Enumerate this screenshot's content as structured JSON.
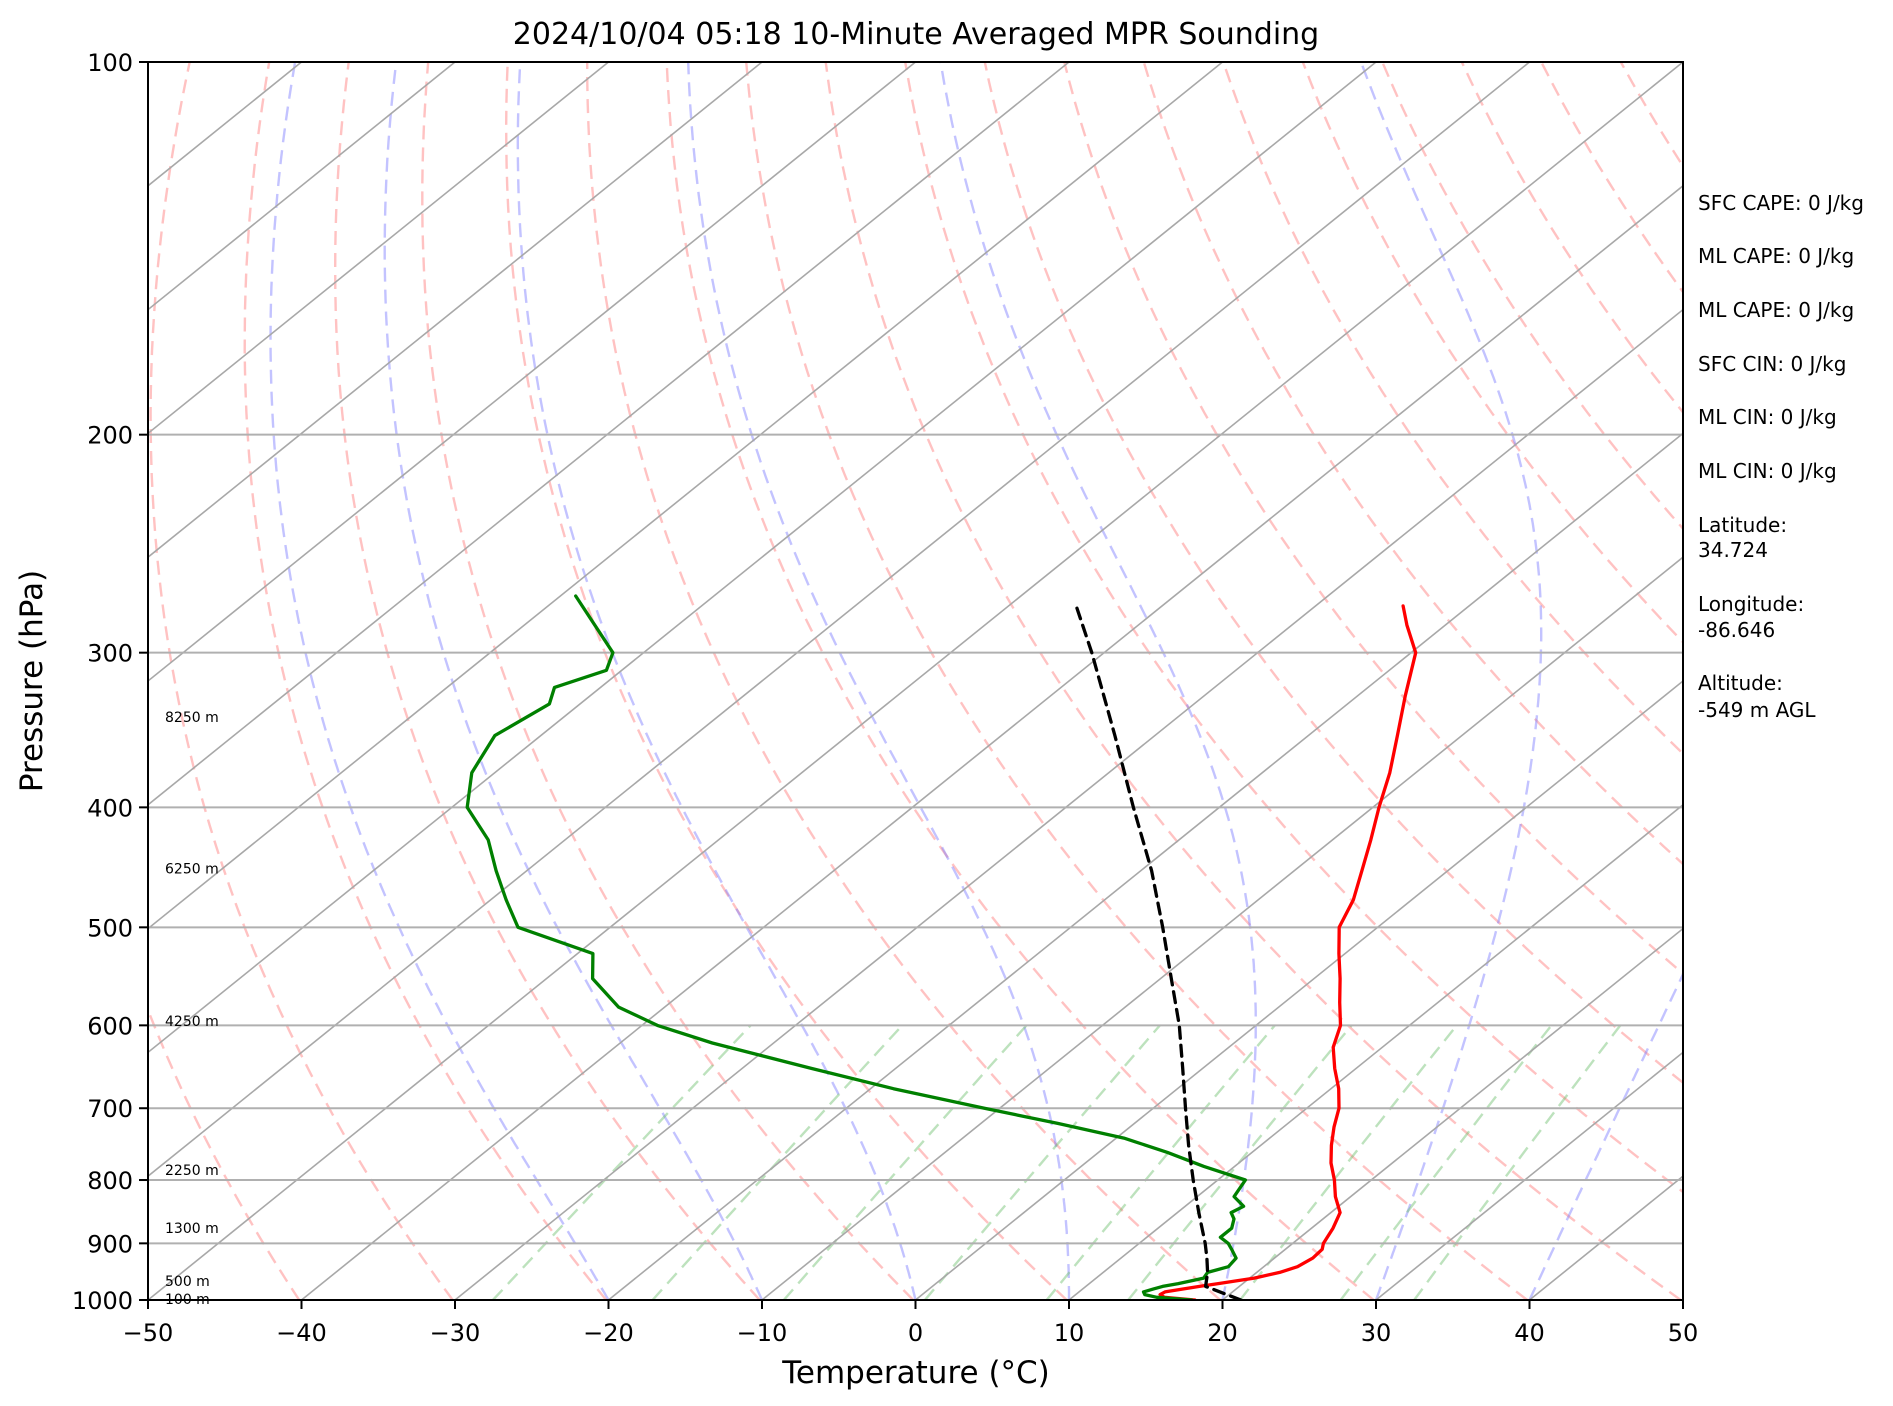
{
  "chart_data": {
    "type": "line",
    "title": "2024/10/04 05:18 10-Minute Averaged MPR Sounding",
    "xlabel": "Temperature (°C)",
    "ylabel": "Pressure (hPa)",
    "xlim": [
      -50,
      50
    ],
    "ylim": [
      1000,
      100
    ],
    "y_scale": "log",
    "skew": "skew-T log-p",
    "x_ticks": [
      "−50",
      "−40",
      "−30",
      "−20",
      "−10",
      "0",
      "10",
      "20",
      "30",
      "40",
      "50"
    ],
    "y_ticks": [
      "100",
      "200",
      "300",
      "400",
      "500",
      "600",
      "700",
      "800",
      "900",
      "1000"
    ],
    "grid": true,
    "series": [
      {
        "role": "temperature",
        "color": "#ff0000",
        "pressure": [
          1000,
          995,
          990,
          985,
          980,
          975,
          970,
          965,
          960,
          950,
          940,
          925,
          910,
          900,
          875,
          850,
          825,
          800,
          775,
          750,
          725,
          700,
          675,
          650,
          625,
          600,
          575,
          550,
          525,
          500,
          475,
          450,
          425,
          400,
          375,
          350,
          325,
          300,
          285,
          275
        ],
        "values": [
          18.2,
          16.0,
          15.5,
          15.6,
          16.5,
          17.4,
          18.4,
          19.4,
          20.3,
          21.5,
          22.2,
          22.5,
          22.4,
          22.0,
          21.4,
          20.6,
          19.0,
          17.6,
          16.0,
          14.6,
          13.3,
          12.1,
          10.5,
          8.6,
          6.8,
          5.5,
          3.6,
          1.7,
          -0.4,
          -2.5,
          -3.8,
          -5.6,
          -7.5,
          -9.6,
          -11.7,
          -14.2,
          -16.9,
          -19.7,
          -22.5,
          -24.3
        ]
      },
      {
        "role": "dewpoint",
        "color": "#008000",
        "pressure": [
          1000,
          995,
          990,
          985,
          980,
          975,
          970,
          960,
          950,
          940,
          925,
          910,
          900,
          890,
          875,
          860,
          850,
          840,
          825,
          800,
          780,
          760,
          740,
          720,
          700,
          675,
          650,
          620,
          600,
          580,
          550,
          525,
          500,
          475,
          450,
          425,
          400,
          375,
          350,
          330,
          320,
          310,
          300,
          270
        ],
        "values": [
          18.0,
          15.5,
          14.5,
          14.2,
          14.6,
          15.0,
          15.8,
          17.0,
          16.8,
          17.7,
          17.5,
          16.5,
          15.8,
          14.8,
          14.8,
          14.2,
          13.5,
          13.8,
          12.4,
          11.8,
          8.0,
          4.5,
          0.5,
          -5.0,
          -11.0,
          -18.5,
          -25.5,
          -34.0,
          -39.0,
          -43.0,
          -47.0,
          -49.0,
          -56.0,
          -59.0,
          -62.0,
          -65.0,
          -69.0,
          -71.5,
          -73.0,
          -72.0,
          -73.0,
          -71.0,
          -72.0,
          -79.0
        ]
      },
      {
        "role": "parcel",
        "color": "#000000",
        "style": "dashed",
        "pressure": [
          1000,
          975,
          950,
          925,
          900,
          850,
          800,
          750,
          700,
          650,
          600,
          550,
          500,
          450,
          400,
          350,
          300,
          275
        ],
        "values": [
          21.2,
          17.8,
          16.8,
          15.6,
          14.3,
          11.4,
          8.4,
          5.3,
          2.1,
          -1.3,
          -5.0,
          -9.3,
          -14.0,
          -19.3,
          -25.6,
          -32.6,
          -40.8,
          -45.6
        ]
      }
    ],
    "height_labels": [
      "100 m",
      "500 m",
      "1300 m",
      "2250 m",
      "4250 m",
      "6250 m",
      "8250 m"
    ],
    "height_label_pressures": [
      998,
      965,
      875,
      785,
      595,
      448,
      338
    ],
    "dry_adiabat_thetas_k": [
      233,
      243,
      253,
      263,
      273,
      283,
      293,
      303,
      313,
      323,
      333,
      343,
      353,
      363,
      373,
      383,
      393,
      403,
      413,
      423,
      433,
      443,
      453,
      473
    ],
    "moist_adiabat_start_temps_c": [
      -20,
      -10,
      0,
      10,
      20,
      30,
      40,
      50
    ],
    "mixing_ratio_lines_g_kg": [
      0.4,
      1,
      2,
      4,
      7,
      10,
      16,
      24,
      32
    ]
  },
  "stats": [
    "SFC CAPE: 0 J/kg",
    "ML CAPE: 0 J/kg",
    "ML CAPE: 0 J/kg",
    "SFC CIN: 0 J/kg",
    "ML CIN: 0 J/kg",
    "ML CIN: 0 J/kg",
    "Latitude:",
    "34.724",
    "Longitude:",
    "-86.646",
    "Altitude:",
    "-549 m AGL"
  ]
}
